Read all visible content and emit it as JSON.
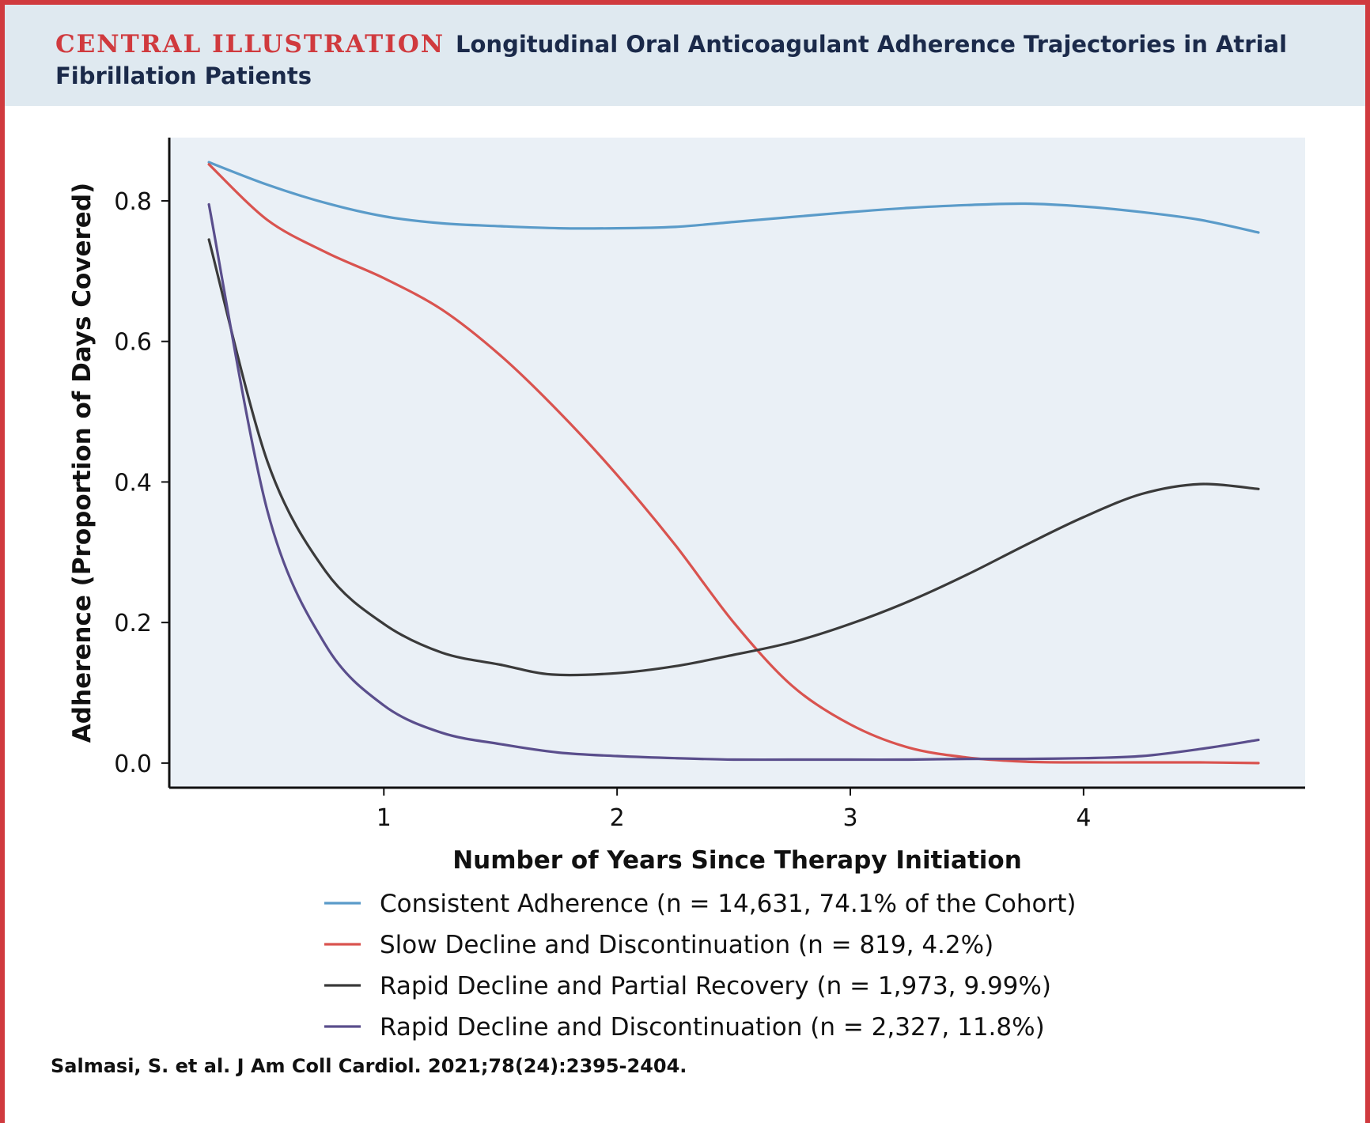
{
  "header": {
    "label": "CENTRAL ILLUSTRATION",
    "title": "Longitudinal Oral Anticoagulant Adherence Trajectories in Atrial Fibrillation Patients"
  },
  "citation": "Salmasi, S. et al. J Am Coll Cardiol. 2021;78(24):2395-2404.",
  "chart_data": {
    "type": "line",
    "title": "Longitudinal Oral Anticoagulant Adherence Trajectories in Atrial Fibrillation Patients",
    "xlabel": "Number of Years Since Therapy Initiation",
    "ylabel": "Adherence (Proportion of Days Covered)",
    "xlim": [
      0.08,
      4.95
    ],
    "ylim": [
      -0.035,
      0.89
    ],
    "xticks": [
      1,
      2,
      3,
      4
    ],
    "xtick_labels": [
      "1",
      "2",
      "3",
      "4"
    ],
    "yticks": [
      0.0,
      0.2,
      0.4,
      0.6,
      0.8
    ],
    "ytick_labels": [
      "0.0",
      "0.2",
      "0.4",
      "0.6",
      "0.8"
    ],
    "grid": false,
    "legend_position": "bottom",
    "series": [
      {
        "name": "Consistent Adherence (n = 14,631, 74.1% of the Cohort)",
        "color": "#5a9bc9",
        "x": [
          0.25,
          0.5,
          0.75,
          1.0,
          1.25,
          1.5,
          1.75,
          2.0,
          2.25,
          2.5,
          2.75,
          3.0,
          3.25,
          3.5,
          3.75,
          4.0,
          4.25,
          4.5,
          4.75
        ],
        "y": [
          0.855,
          0.823,
          0.797,
          0.778,
          0.768,
          0.764,
          0.761,
          0.761,
          0.763,
          0.77,
          0.777,
          0.784,
          0.79,
          0.794,
          0.796,
          0.792,
          0.784,
          0.773,
          0.755
        ]
      },
      {
        "name": "Slow Decline and Discontinuation (n = 819, 4.2%)",
        "color": "#d9534f",
        "x": [
          0.25,
          0.5,
          0.75,
          1.0,
          1.25,
          1.5,
          1.75,
          2.0,
          2.25,
          2.5,
          2.75,
          3.0,
          3.25,
          3.5,
          3.75,
          4.0,
          4.25,
          4.5,
          4.75
        ],
        "y": [
          0.852,
          0.773,
          0.727,
          0.69,
          0.645,
          0.58,
          0.5,
          0.41,
          0.31,
          0.2,
          0.11,
          0.055,
          0.022,
          0.008,
          0.002,
          0.001,
          0.001,
          0.001,
          0.0
        ]
      },
      {
        "name": "Rapid Decline and Partial Recovery (n = 1,973, 9.99%)",
        "color": "#3a3a3a",
        "x": [
          0.25,
          0.5,
          0.75,
          1.0,
          1.25,
          1.5,
          1.72,
          2.0,
          2.25,
          2.5,
          2.75,
          3.0,
          3.25,
          3.5,
          3.75,
          4.0,
          4.25,
          4.5,
          4.75
        ],
        "y": [
          0.745,
          0.43,
          0.273,
          0.198,
          0.157,
          0.14,
          0.126,
          0.128,
          0.138,
          0.154,
          0.172,
          0.198,
          0.23,
          0.268,
          0.31,
          0.35,
          0.383,
          0.397,
          0.39
        ]
      },
      {
        "name": "Rapid Decline and Discontinuation (n = 2,327, 11.8%)",
        "color": "#5a4e8c",
        "x": [
          0.25,
          0.5,
          0.75,
          1.0,
          1.25,
          1.5,
          1.75,
          2.0,
          2.25,
          2.5,
          2.75,
          3.0,
          3.25,
          3.5,
          3.75,
          4.0,
          4.25,
          4.5,
          4.75
        ],
        "y": [
          0.795,
          0.36,
          0.168,
          0.082,
          0.043,
          0.027,
          0.015,
          0.01,
          0.007,
          0.005,
          0.005,
          0.005,
          0.005,
          0.006,
          0.006,
          0.007,
          0.01,
          0.02,
          0.033
        ]
      }
    ]
  }
}
